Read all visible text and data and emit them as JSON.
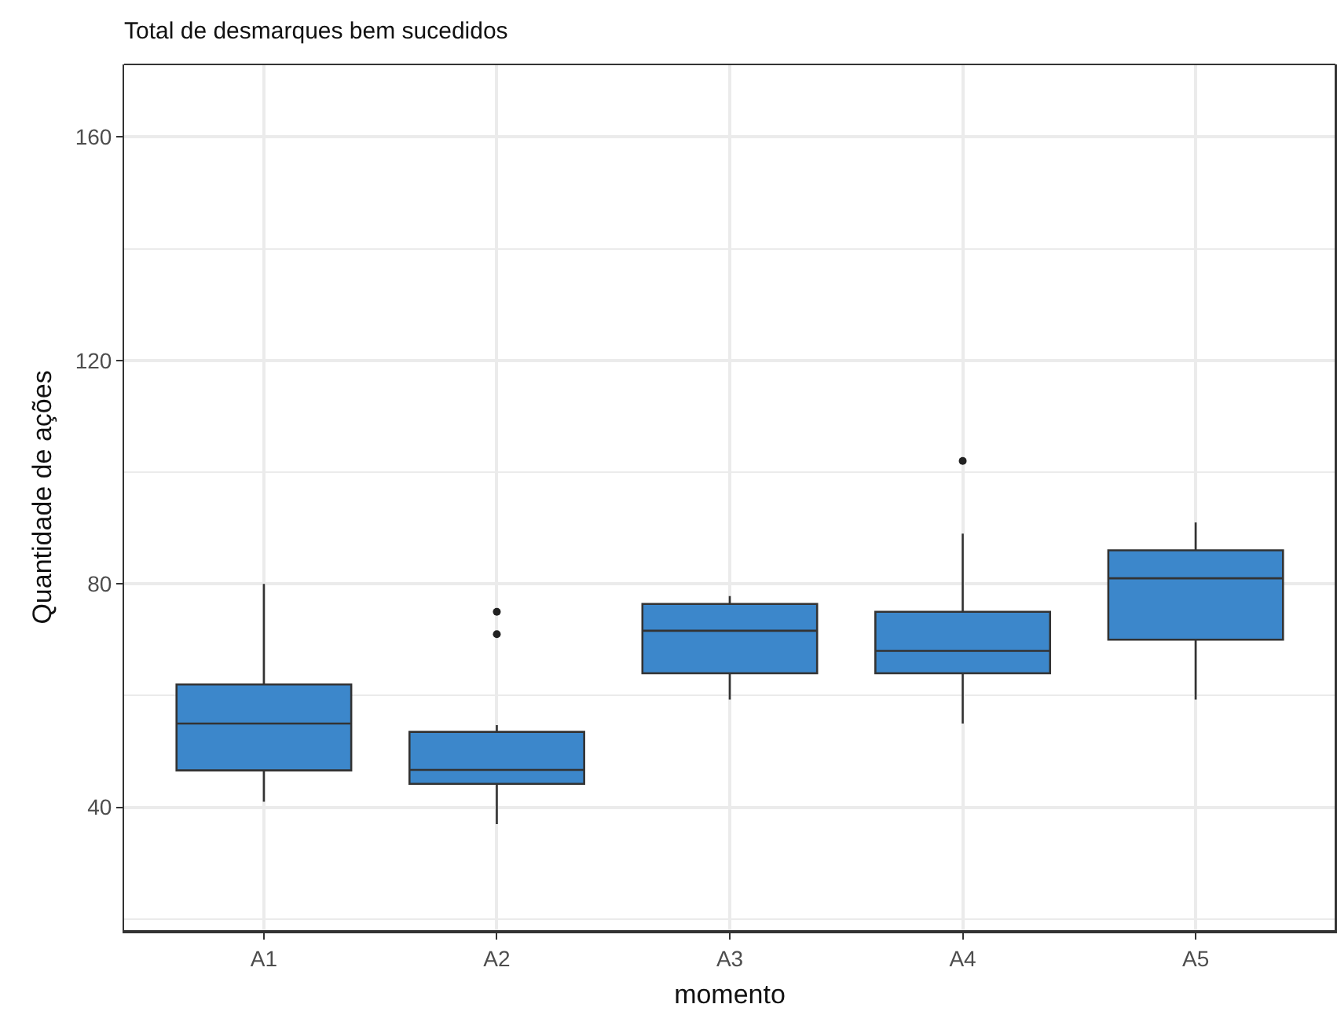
{
  "chart_data": {
    "type": "box",
    "title": "Total de desmarques bem sucedidos",
    "xlabel": "momento",
    "ylabel": "Quantidade de ações",
    "categories": [
      "A1",
      "A2",
      "A3",
      "A4",
      "A5"
    ],
    "color": "#3c87cb",
    "boxes": [
      {
        "low": 41,
        "q1": 46.6,
        "median": 55,
        "q3": 62,
        "high": 80
      },
      {
        "low": 37,
        "q1": 44.2,
        "median": 46.7,
        "q3": 53.5,
        "high": 54.7,
        "outliers": [
          71,
          75
        ]
      },
      {
        "low": 59.3,
        "q1": 64,
        "median": 71.6,
        "q3": 76.4,
        "high": 77.8
      },
      {
        "low": 55,
        "q1": 64,
        "median": 68,
        "q3": 75,
        "high": 89,
        "outliers": [
          102
        ]
      },
      {
        "low": 59.3,
        "q1": 70,
        "median": 81,
        "q3": 86,
        "high": 91
      }
    ],
    "ylim": [
      18,
      173
    ],
    "yticks": [
      40,
      80,
      120,
      160
    ],
    "grid": true
  }
}
